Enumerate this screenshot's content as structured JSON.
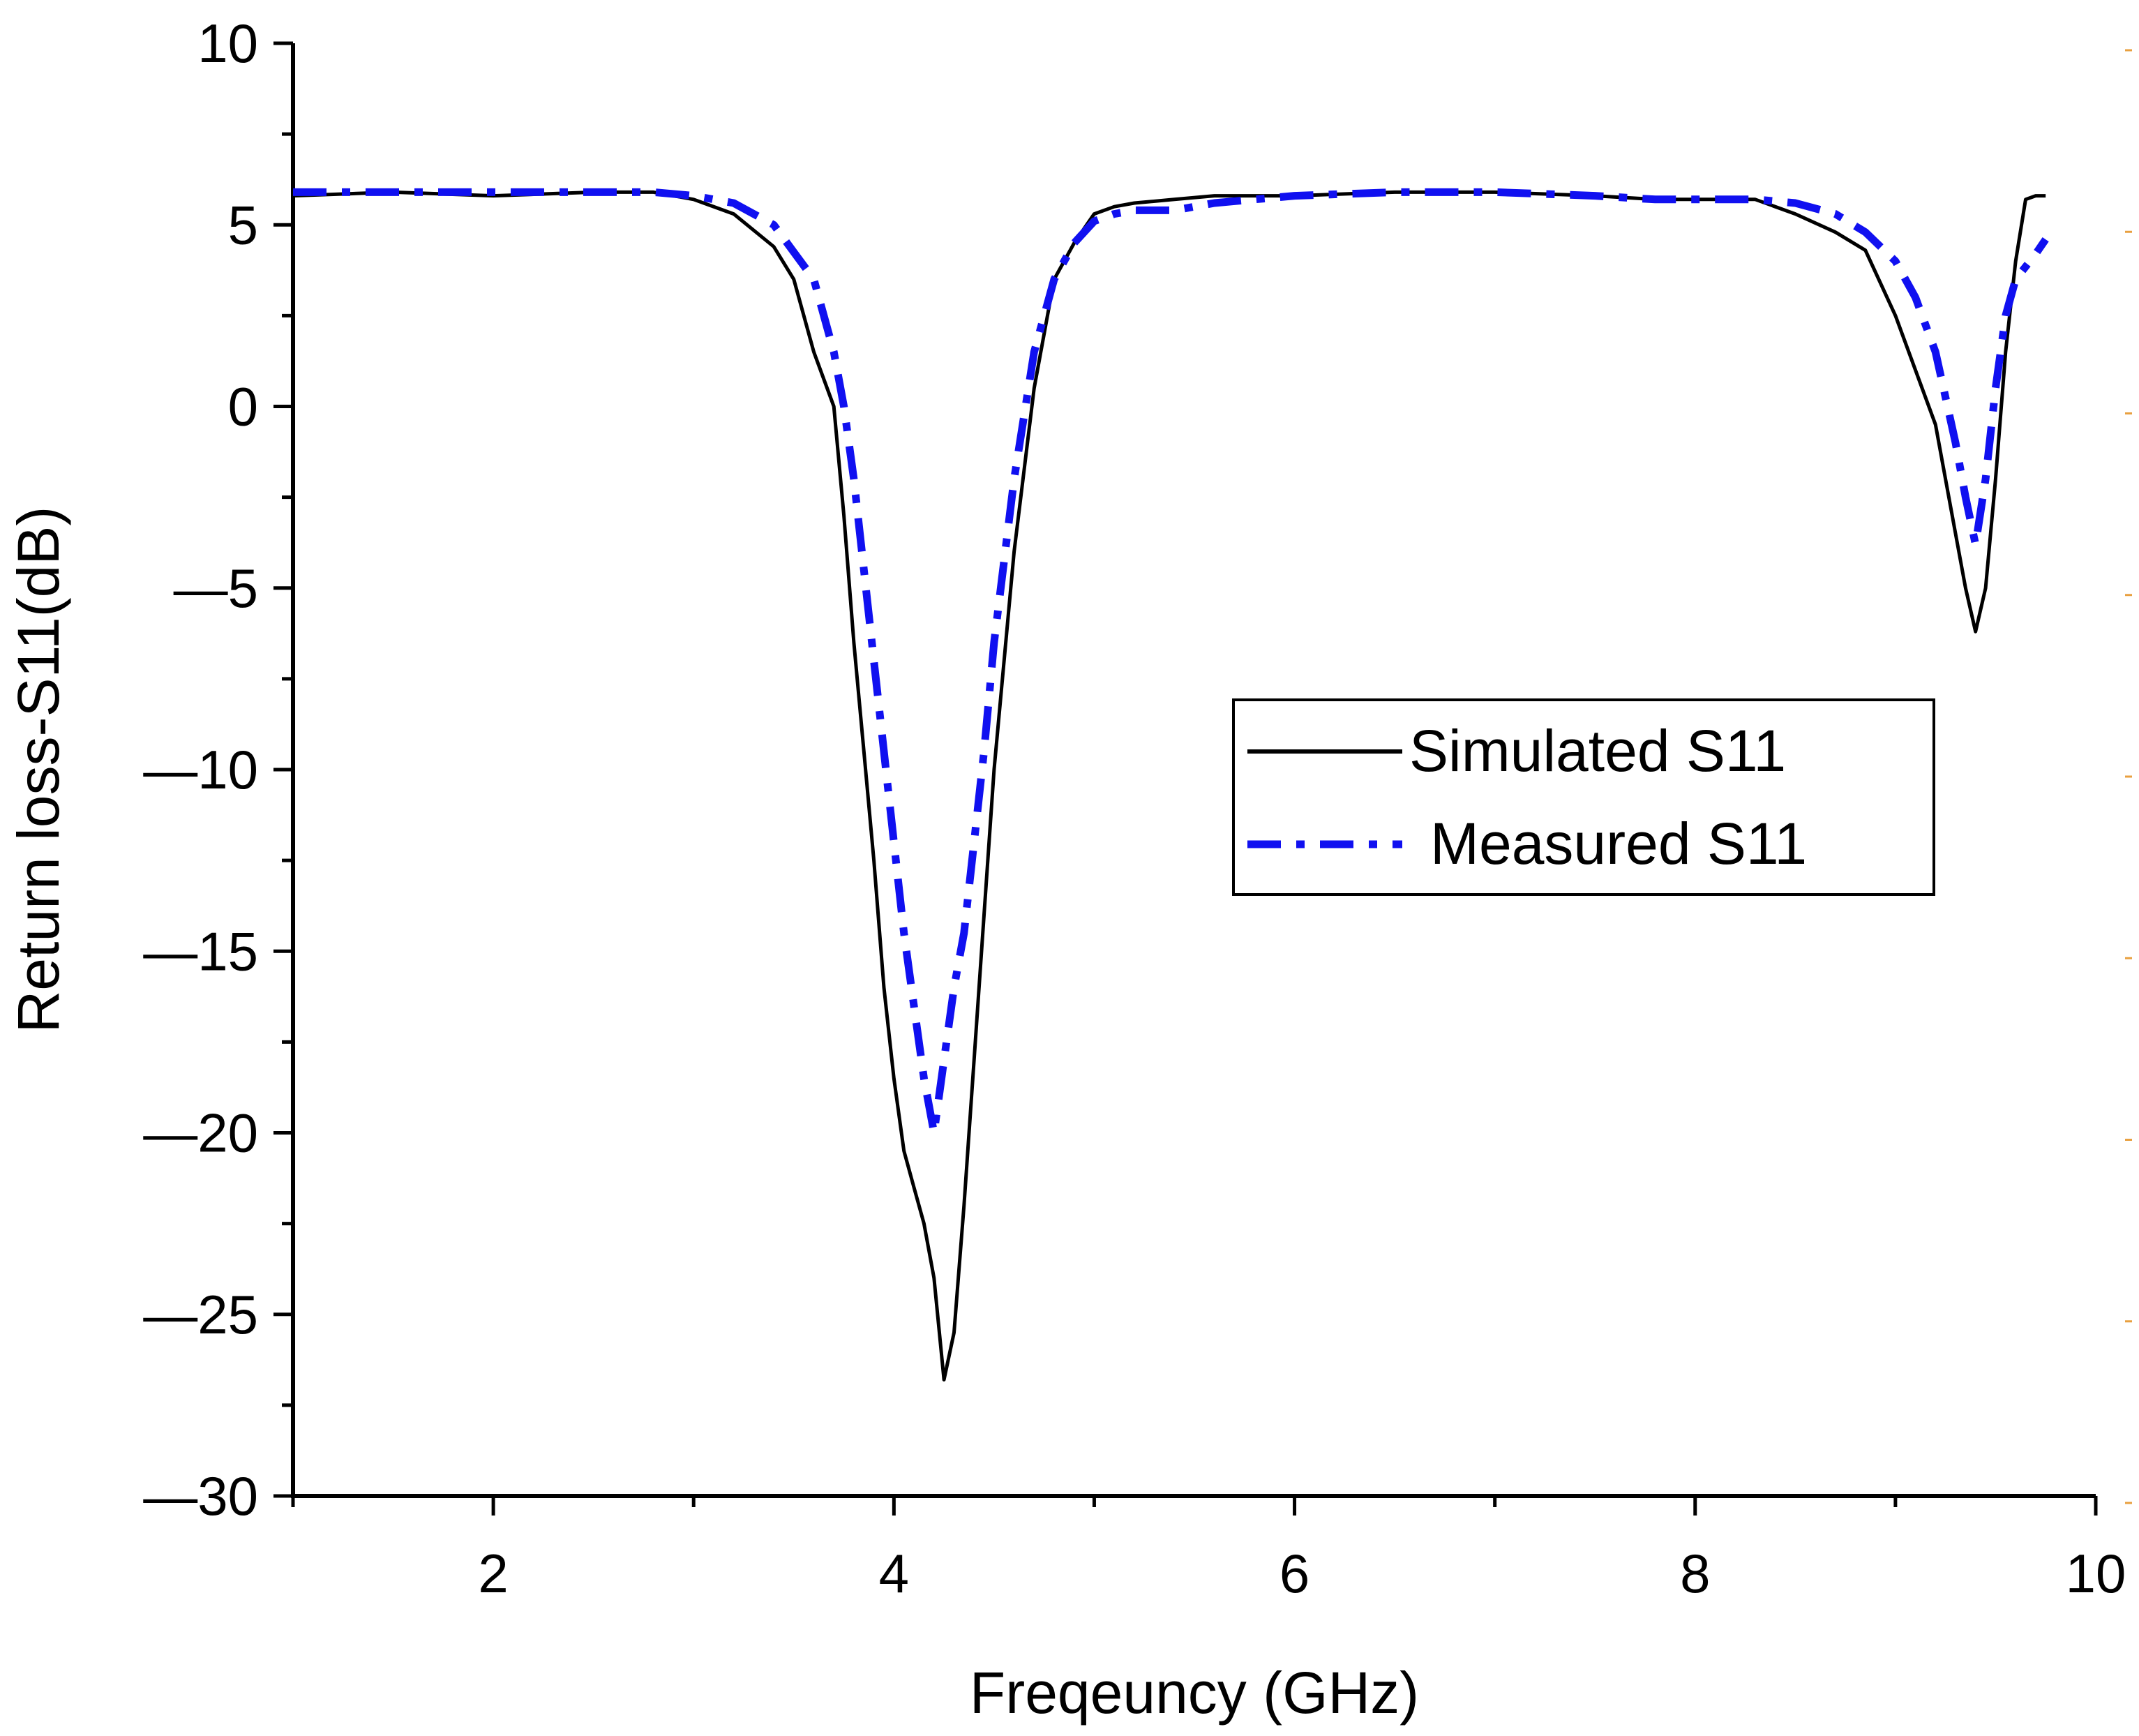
{
  "chart_data": {
    "type": "line",
    "title": "",
    "xlabel": "Freqeuncy (GHz)",
    "ylabel": "Return loss-S11(dB)",
    "xlim": [
      1,
      10
    ],
    "ylim": [
      -30,
      10
    ],
    "xticks": [
      2,
      4,
      6,
      8,
      10
    ],
    "yticks": [
      10,
      5,
      0,
      -5,
      -10,
      -15,
      -20,
      -25,
      -30
    ],
    "ytick_labels": [
      "10",
      "5",
      "0",
      "—5",
      "—10",
      "—15",
      "—20",
      "—25",
      "—30"
    ],
    "grid": false,
    "legend_position": "center-right",
    "series": [
      {
        "name": "Simulated S11",
        "color": "#000000",
        "style": "solid",
        "x": [
          1.0,
          1.5,
          2.0,
          2.5,
          2.8,
          3.0,
          3.2,
          3.4,
          3.5,
          3.6,
          3.7,
          3.75,
          3.8,
          3.85,
          3.9,
          3.95,
          4.0,
          4.05,
          4.1,
          4.15,
          4.2,
          4.25,
          4.3,
          4.35,
          4.4,
          4.45,
          4.5,
          4.6,
          4.7,
          4.8,
          4.9,
          5.0,
          5.1,
          5.2,
          5.4,
          5.6,
          6.0,
          6.5,
          7.0,
          7.5,
          7.8,
          8.0,
          8.3,
          8.5,
          8.7,
          8.85,
          9.0,
          9.1,
          9.2,
          9.3,
          9.35,
          9.4,
          9.45,
          9.5,
          9.55,
          9.6,
          9.65,
          9.7,
          9.75
        ],
        "y": [
          5.8,
          5.9,
          5.8,
          5.9,
          5.9,
          5.7,
          5.3,
          4.4,
          3.5,
          1.5,
          0.0,
          -3.0,
          -6.5,
          -9.5,
          -12.5,
          -16.0,
          -18.5,
          -20.5,
          -21.5,
          -22.5,
          -24.0,
          -26.8,
          -25.5,
          -22.0,
          -18.0,
          -14.0,
          -10.0,
          -4.0,
          0.5,
          3.5,
          4.5,
          5.3,
          5.5,
          5.6,
          5.7,
          5.8,
          5.8,
          5.9,
          5.9,
          5.8,
          5.7,
          5.7,
          5.7,
          5.3,
          4.8,
          4.3,
          2.5,
          1.0,
          -0.5,
          -3.5,
          -5.0,
          -6.2,
          -5.0,
          -2.0,
          1.5,
          4.0,
          5.7,
          5.8,
          5.8
        ]
      },
      {
        "name": "Measured S11",
        "color": "#1010f0",
        "style": "dash-dot",
        "x": [
          1.0,
          1.5,
          2.0,
          2.5,
          2.8,
          3.0,
          3.2,
          3.4,
          3.6,
          3.7,
          3.75,
          3.8,
          3.85,
          3.9,
          3.95,
          4.0,
          4.05,
          4.1,
          4.15,
          4.2,
          4.25,
          4.3,
          4.35,
          4.4,
          4.45,
          4.5,
          4.6,
          4.7,
          4.8,
          4.9,
          5.0,
          5.1,
          5.2,
          5.4,
          5.6,
          6.0,
          6.5,
          7.0,
          7.5,
          7.8,
          8.0,
          8.3,
          8.5,
          8.7,
          8.85,
          9.0,
          9.1,
          9.2,
          9.3,
          9.35,
          9.4,
          9.45,
          9.5,
          9.55,
          9.6,
          9.7,
          9.75
        ],
        "y": [
          5.9,
          5.9,
          5.9,
          5.9,
          5.9,
          5.8,
          5.6,
          5.0,
          3.5,
          1.5,
          0.0,
          -2.0,
          -4.5,
          -7.0,
          -9.5,
          -12.0,
          -14.5,
          -16.5,
          -18.5,
          -20.0,
          -18.0,
          -16.0,
          -14.5,
          -12.0,
          -9.5,
          -6.5,
          -2.0,
          1.5,
          3.5,
          4.5,
          5.1,
          5.3,
          5.4,
          5.4,
          5.6,
          5.8,
          5.9,
          5.9,
          5.8,
          5.7,
          5.7,
          5.7,
          5.6,
          5.3,
          4.8,
          4.0,
          3.0,
          1.5,
          -1.0,
          -2.5,
          -3.8,
          -2.0,
          0.5,
          2.5,
          3.5,
          4.2,
          4.6
        ]
      }
    ]
  }
}
